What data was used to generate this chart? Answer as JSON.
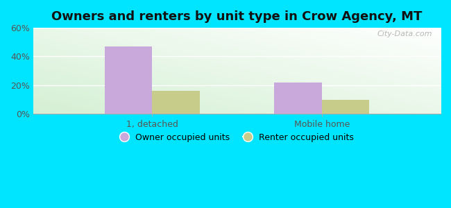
{
  "title": "Owners and renters by unit type in Crow Agency, MT",
  "categories": [
    "1, detached",
    "Mobile home"
  ],
  "owner_values": [
    47,
    22
  ],
  "renter_values": [
    16,
    10
  ],
  "owner_color": "#c9a8dc",
  "renter_color": "#c8cc8a",
  "owner_label": "Owner occupied units",
  "renter_label": "Renter occupied units",
  "ylim": [
    0,
    60
  ],
  "yticks": [
    0,
    20,
    40,
    60
  ],
  "ytick_labels": [
    "0%",
    "20%",
    "40%",
    "60%"
  ],
  "bar_width": 0.28,
  "outer_background": "#00e5ff",
  "title_fontsize": 13,
  "watermark": "City-Data.com",
  "grid_color": "#ccddcc",
  "gradient_top_right": "#f0faf0",
  "gradient_bottom_left": "#c8eece"
}
